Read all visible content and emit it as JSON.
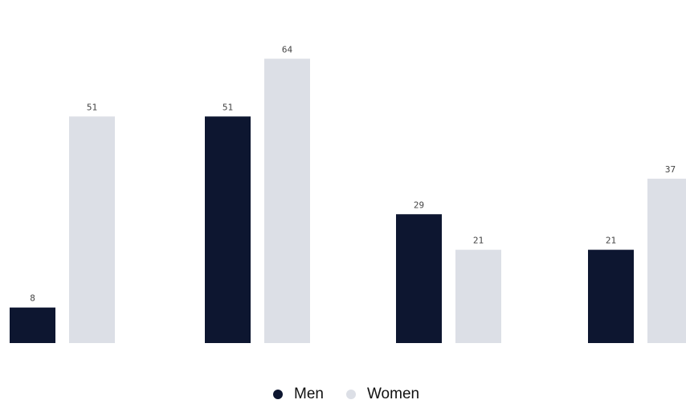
{
  "chart_data": {
    "type": "bar",
    "categories": [
      "",
      "",
      "",
      ""
    ],
    "series": [
      {
        "name": "Men",
        "values": [
          8,
          51,
          29,
          21
        ],
        "color": "#0d1630"
      },
      {
        "name": "Women",
        "values": [
          51,
          64,
          21,
          37
        ],
        "color": "#dcdfe6"
      }
    ],
    "value_labels": {
      "Men": [
        "8",
        "51",
        "29",
        "21"
      ],
      "Women": [
        "51",
        "64",
        "21",
        "37"
      ]
    },
    "title": "",
    "xlabel": "",
    "ylabel": "",
    "ylim": [
      0,
      70
    ],
    "grid": false,
    "legend_position": "bottom-center"
  }
}
